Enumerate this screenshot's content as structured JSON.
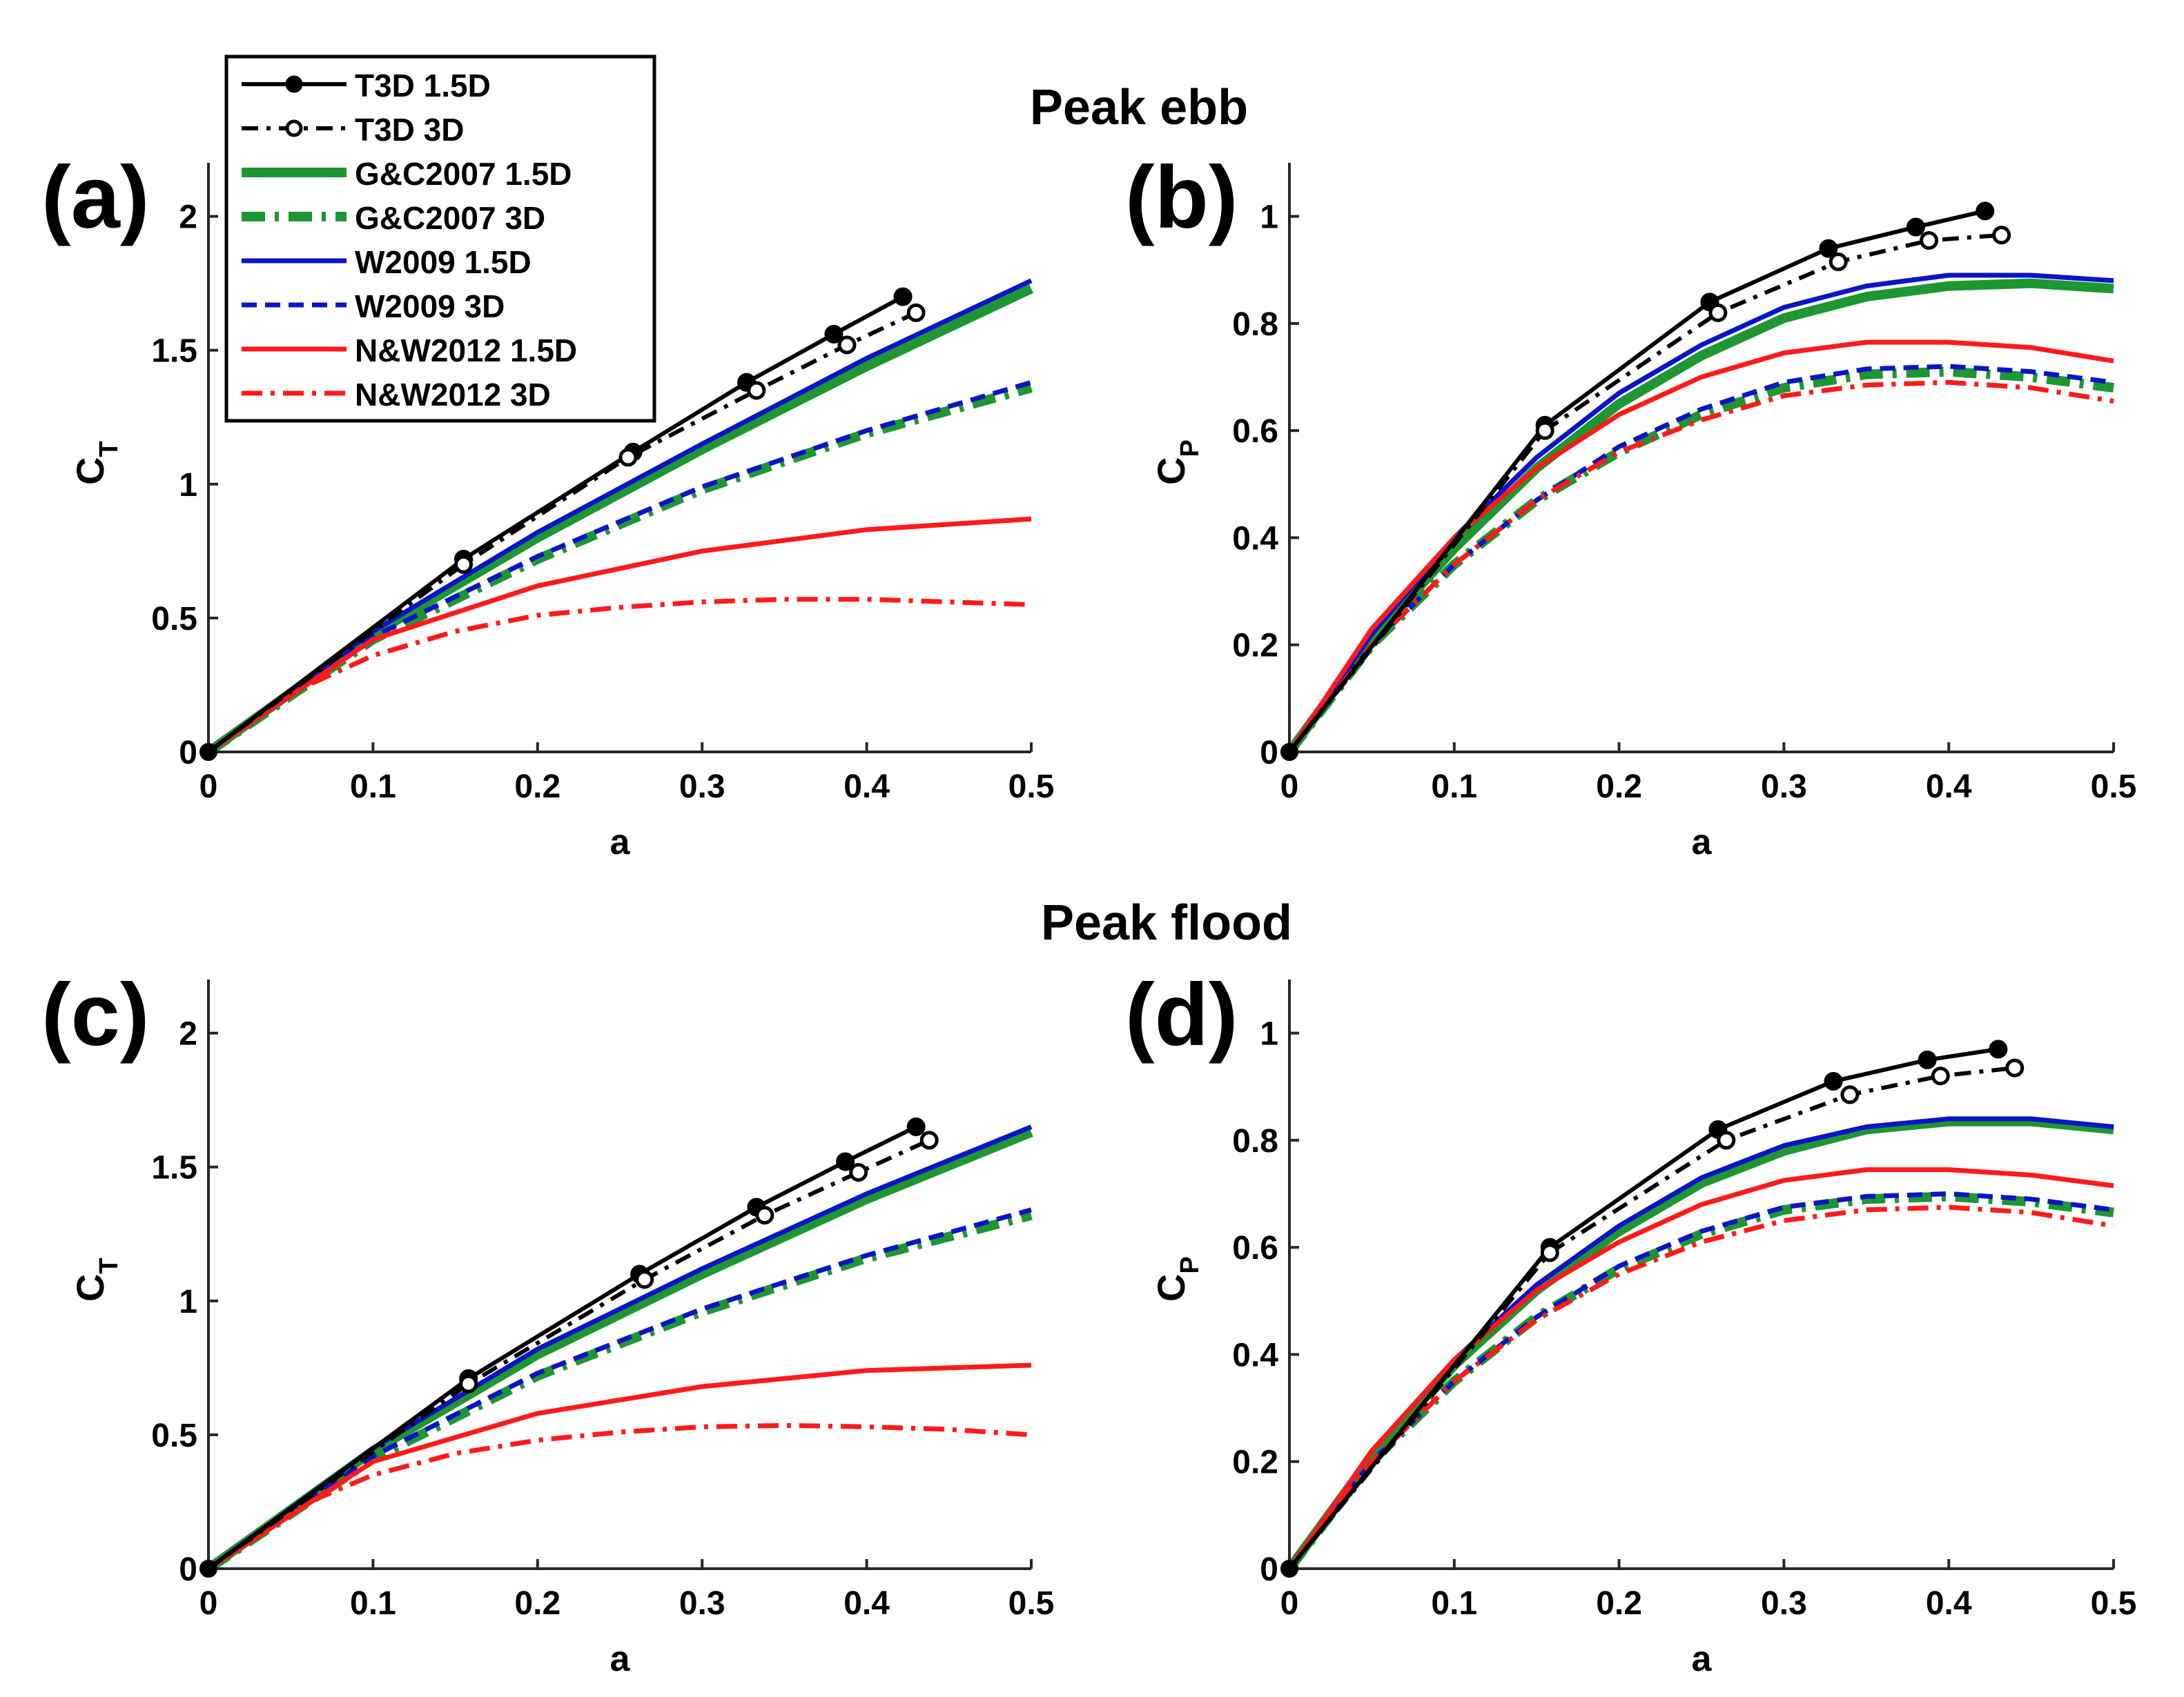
{
  "figure": {
    "title_top": "Peak ebb",
    "title_bottom": "Peak flood"
  },
  "legend": {
    "position": "top-left",
    "entries": [
      {
        "label": "T3D 1.5D",
        "color": "#000000",
        "style": "solid-filled-markers"
      },
      {
        "label": "T3D 3D",
        "color": "#000000",
        "style": "dashdot-open-markers"
      },
      {
        "label": "G&C2007 1.5D",
        "color": "#1e9632",
        "style": "solid-thick"
      },
      {
        "label": "G&C2007 3D",
        "color": "#1e9632",
        "style": "dashdot-thick"
      },
      {
        "label": "W2009 1.5D",
        "color": "#0a14c8",
        "style": "solid"
      },
      {
        "label": "W2009 3D",
        "color": "#0a14c8",
        "style": "dashed"
      },
      {
        "label": "N&W2012 1.5D",
        "color": "#ff1a1a",
        "style": "solid"
      },
      {
        "label": "N&W2012 3D",
        "color": "#ff1a1a",
        "style": "dashdot"
      }
    ]
  },
  "chart_data": [
    {
      "panel_label": "(a)",
      "type": "line",
      "xlabel": "a",
      "ylabel": "C",
      "ylabel_sub": "T",
      "xlim": [
        0,
        0.5
      ],
      "ylim": [
        0,
        2.2
      ],
      "xticks": [
        0,
        0.1,
        0.2,
        0.3,
        0.4,
        0.5
      ],
      "xtick_labels": [
        "0",
        "0.1",
        "0.2",
        "0.3",
        "0.4",
        "0.5"
      ],
      "yticks": [
        0,
        0.5,
        1,
        1.5,
        2
      ],
      "ytick_labels": [
        "0",
        "0.5",
        "1",
        "1.5",
        "2"
      ],
      "series": [
        {
          "name": "G&C2007 1.5D",
          "x": [
            0,
            0.1,
            0.2,
            0.3,
            0.4,
            0.5
          ],
          "y": [
            0,
            0.44,
            0.8,
            1.13,
            1.44,
            1.73
          ]
        },
        {
          "name": "G&C2007 3D",
          "x": [
            0,
            0.1,
            0.2,
            0.3,
            0.4,
            0.5
          ],
          "y": [
            0,
            0.42,
            0.72,
            0.98,
            1.19,
            1.36
          ]
        },
        {
          "name": "W2009 1.5D",
          "x": [
            0,
            0.1,
            0.2,
            0.3,
            0.4,
            0.5
          ],
          "y": [
            0,
            0.45,
            0.82,
            1.15,
            1.47,
            1.76
          ]
        },
        {
          "name": "W2009 3D",
          "x": [
            0,
            0.1,
            0.2,
            0.3,
            0.4,
            0.5
          ],
          "y": [
            0,
            0.43,
            0.73,
            0.99,
            1.2,
            1.38
          ]
        },
        {
          "name": "N&W2012 1.5D",
          "x": [
            0,
            0.1,
            0.2,
            0.3,
            0.4,
            0.5
          ],
          "y": [
            0,
            0.42,
            0.62,
            0.75,
            0.83,
            0.87
          ]
        },
        {
          "name": "N&W2012 3D",
          "x": [
            0,
            0.05,
            0.1,
            0.15,
            0.2,
            0.25,
            0.3,
            0.35,
            0.4,
            0.45,
            0.5
          ],
          "y": [
            0,
            0.22,
            0.36,
            0.45,
            0.51,
            0.54,
            0.56,
            0.57,
            0.57,
            0.56,
            0.55
          ]
        },
        {
          "name": "T3D 1.5D",
          "x": [
            0,
            0.155,
            0.258,
            0.327,
            0.38,
            0.422
          ],
          "y": [
            0,
            0.72,
            1.12,
            1.38,
            1.56,
            1.7
          ]
        },
        {
          "name": "T3D 3D",
          "x": [
            0,
            0.155,
            0.255,
            0.333,
            0.388,
            0.43
          ],
          "y": [
            0,
            0.7,
            1.1,
            1.35,
            1.52,
            1.64
          ]
        }
      ]
    },
    {
      "panel_label": "(b)",
      "type": "line",
      "xlabel": "a",
      "ylabel": "C",
      "ylabel_sub": "P",
      "xlim": [
        0,
        0.5
      ],
      "ylim": [
        0,
        1.1
      ],
      "xticks": [
        0,
        0.1,
        0.2,
        0.3,
        0.4,
        0.5
      ],
      "xtick_labels": [
        "0",
        "0.1",
        "0.2",
        "0.3",
        "0.4",
        "0.5"
      ],
      "yticks": [
        0,
        0.2,
        0.4,
        0.6,
        0.8,
        1
      ],
      "ytick_labels": [
        "0",
        "0.2",
        "0.4",
        "0.6",
        "0.8",
        "1"
      ],
      "series": [
        {
          "name": "G&C2007 1.5D",
          "x": [
            0,
            0.05,
            0.1,
            0.15,
            0.2,
            0.25,
            0.3,
            0.35,
            0.4,
            0.45,
            0.5
          ],
          "y": [
            0,
            0.21,
            0.38,
            0.53,
            0.65,
            0.74,
            0.81,
            0.85,
            0.87,
            0.875,
            0.865
          ]
        },
        {
          "name": "G&C2007 3D",
          "x": [
            0,
            0.05,
            0.1,
            0.15,
            0.2,
            0.25,
            0.3,
            0.35,
            0.4,
            0.45,
            0.5
          ],
          "y": [
            0,
            0.2,
            0.35,
            0.47,
            0.56,
            0.63,
            0.68,
            0.705,
            0.71,
            0.7,
            0.68
          ]
        },
        {
          "name": "W2009 1.5D",
          "x": [
            0,
            0.05,
            0.1,
            0.15,
            0.2,
            0.25,
            0.3,
            0.35,
            0.4,
            0.45,
            0.5
          ],
          "y": [
            0,
            0.22,
            0.4,
            0.55,
            0.67,
            0.76,
            0.83,
            0.87,
            0.89,
            0.89,
            0.88
          ]
        },
        {
          "name": "W2009 3D",
          "x": [
            0,
            0.05,
            0.1,
            0.15,
            0.2,
            0.25,
            0.3,
            0.35,
            0.4,
            0.45,
            0.5
          ],
          "y": [
            0,
            0.2,
            0.35,
            0.47,
            0.57,
            0.64,
            0.69,
            0.715,
            0.72,
            0.71,
            0.69
          ]
        },
        {
          "name": "N&W2012 1.5D",
          "x": [
            0,
            0.05,
            0.1,
            0.15,
            0.2,
            0.25,
            0.3,
            0.35,
            0.4,
            0.45,
            0.5
          ],
          "y": [
            0,
            0.23,
            0.4,
            0.53,
            0.63,
            0.7,
            0.745,
            0.765,
            0.765,
            0.755,
            0.73
          ]
        },
        {
          "name": "N&W2012 3D",
          "x": [
            0,
            0.05,
            0.1,
            0.15,
            0.2,
            0.25,
            0.3,
            0.35,
            0.4,
            0.45,
            0.5
          ],
          "y": [
            0,
            0.2,
            0.35,
            0.47,
            0.56,
            0.62,
            0.665,
            0.685,
            0.69,
            0.68,
            0.655
          ]
        },
        {
          "name": "T3D 1.5D",
          "x": [
            0,
            0.155,
            0.255,
            0.327,
            0.38,
            0.422
          ],
          "y": [
            0,
            0.61,
            0.84,
            0.94,
            0.98,
            1.01
          ]
        },
        {
          "name": "T3D 3D",
          "x": [
            0,
            0.155,
            0.26,
            0.333,
            0.388,
            0.432
          ],
          "y": [
            0,
            0.6,
            0.82,
            0.915,
            0.955,
            0.965
          ]
        }
      ]
    },
    {
      "panel_label": "(c)",
      "type": "line",
      "xlabel": "a",
      "ylabel": "C",
      "ylabel_sub": "T",
      "xlim": [
        0,
        0.5
      ],
      "ylim": [
        0,
        2.2
      ],
      "xticks": [
        0,
        0.1,
        0.2,
        0.3,
        0.4,
        0.5
      ],
      "xtick_labels": [
        "0",
        "0.1",
        "0.2",
        "0.3",
        "0.4",
        "0.5"
      ],
      "yticks": [
        0,
        0.5,
        1,
        1.5,
        2
      ],
      "ytick_labels": [
        "0",
        "0.5",
        "1",
        "1.5",
        "2"
      ],
      "series": [
        {
          "name": "G&C2007 1.5D",
          "x": [
            0,
            0.1,
            0.2,
            0.3,
            0.4,
            0.5
          ],
          "y": [
            0,
            0.44,
            0.8,
            1.1,
            1.38,
            1.63
          ]
        },
        {
          "name": "G&C2007 3D",
          "x": [
            0,
            0.1,
            0.2,
            0.3,
            0.4,
            0.5
          ],
          "y": [
            0,
            0.41,
            0.72,
            0.96,
            1.16,
            1.32
          ]
        },
        {
          "name": "W2009 1.5D",
          "x": [
            0,
            0.1,
            0.2,
            0.3,
            0.4,
            0.5
          ],
          "y": [
            0,
            0.45,
            0.82,
            1.12,
            1.4,
            1.65
          ]
        },
        {
          "name": "W2009 3D",
          "x": [
            0,
            0.1,
            0.2,
            0.3,
            0.4,
            0.5
          ],
          "y": [
            0,
            0.42,
            0.73,
            0.97,
            1.17,
            1.34
          ]
        },
        {
          "name": "N&W2012 1.5D",
          "x": [
            0,
            0.1,
            0.2,
            0.3,
            0.4,
            0.5
          ],
          "y": [
            0,
            0.4,
            0.58,
            0.68,
            0.74,
            0.76
          ]
        },
        {
          "name": "N&W2012 3D",
          "x": [
            0,
            0.05,
            0.1,
            0.15,
            0.2,
            0.25,
            0.3,
            0.35,
            0.4,
            0.45,
            0.5
          ],
          "y": [
            0,
            0.22,
            0.35,
            0.43,
            0.48,
            0.51,
            0.53,
            0.535,
            0.53,
            0.52,
            0.5
          ]
        },
        {
          "name": "T3D 1.5D",
          "x": [
            0,
            0.158,
            0.262,
            0.333,
            0.387,
            0.43
          ],
          "y": [
            0,
            0.71,
            1.1,
            1.35,
            1.52,
            1.65
          ]
        },
        {
          "name": "T3D 3D",
          "x": [
            0,
            0.158,
            0.265,
            0.338,
            0.395,
            0.438
          ],
          "y": [
            0,
            0.69,
            1.08,
            1.32,
            1.48,
            1.6
          ]
        }
      ]
    },
    {
      "panel_label": "(d)",
      "type": "line",
      "xlabel": "a",
      "ylabel": "C",
      "ylabel_sub": "P",
      "xlim": [
        0,
        0.5
      ],
      "ylim": [
        0,
        1.1
      ],
      "xticks": [
        0,
        0.1,
        0.2,
        0.3,
        0.4,
        0.5
      ],
      "xtick_labels": [
        "0",
        "0.1",
        "0.2",
        "0.3",
        "0.4",
        "0.5"
      ],
      "yticks": [
        0,
        0.2,
        0.4,
        0.6,
        0.8,
        1
      ],
      "ytick_labels": [
        "0",
        "0.2",
        "0.4",
        "0.6",
        "0.8",
        "1"
      ],
      "series": [
        {
          "name": "G&C2007 1.5D",
          "x": [
            0,
            0.05,
            0.1,
            0.15,
            0.2,
            0.25,
            0.3,
            0.35,
            0.4,
            0.45,
            0.5
          ],
          "y": [
            0,
            0.21,
            0.38,
            0.52,
            0.63,
            0.72,
            0.78,
            0.82,
            0.835,
            0.835,
            0.82
          ]
        },
        {
          "name": "G&C2007 3D",
          "x": [
            0,
            0.05,
            0.1,
            0.15,
            0.2,
            0.25,
            0.3,
            0.35,
            0.4,
            0.45,
            0.5
          ],
          "y": [
            0,
            0.2,
            0.35,
            0.47,
            0.56,
            0.625,
            0.67,
            0.69,
            0.695,
            0.685,
            0.665
          ]
        },
        {
          "name": "W2009 1.5D",
          "x": [
            0,
            0.05,
            0.1,
            0.15,
            0.2,
            0.25,
            0.3,
            0.35,
            0.4,
            0.45,
            0.5
          ],
          "y": [
            0,
            0.22,
            0.39,
            0.53,
            0.64,
            0.73,
            0.79,
            0.825,
            0.84,
            0.84,
            0.825
          ]
        },
        {
          "name": "W2009 3D",
          "x": [
            0,
            0.05,
            0.1,
            0.15,
            0.2,
            0.25,
            0.3,
            0.35,
            0.4,
            0.45,
            0.5
          ],
          "y": [
            0,
            0.2,
            0.35,
            0.47,
            0.565,
            0.63,
            0.675,
            0.695,
            0.7,
            0.69,
            0.67
          ]
        },
        {
          "name": "N&W2012 1.5D",
          "x": [
            0,
            0.05,
            0.1,
            0.15,
            0.2,
            0.25,
            0.3,
            0.35,
            0.4,
            0.45,
            0.5
          ],
          "y": [
            0,
            0.22,
            0.39,
            0.52,
            0.61,
            0.68,
            0.725,
            0.745,
            0.745,
            0.735,
            0.715
          ]
        },
        {
          "name": "N&W2012 3D",
          "x": [
            0,
            0.05,
            0.1,
            0.15,
            0.2,
            0.25,
            0.3,
            0.35,
            0.4,
            0.45,
            0.5
          ],
          "y": [
            0,
            0.2,
            0.35,
            0.465,
            0.55,
            0.61,
            0.65,
            0.67,
            0.675,
            0.665,
            0.64
          ]
        },
        {
          "name": "T3D 1.5D",
          "x": [
            0,
            0.158,
            0.26,
            0.33,
            0.387,
            0.43
          ],
          "y": [
            0,
            0.6,
            0.82,
            0.91,
            0.95,
            0.97
          ]
        },
        {
          "name": "T3D 3D",
          "x": [
            0,
            0.158,
            0.265,
            0.34,
            0.395,
            0.44
          ],
          "y": [
            0,
            0.59,
            0.8,
            0.885,
            0.92,
            0.935
          ]
        }
      ]
    }
  ]
}
